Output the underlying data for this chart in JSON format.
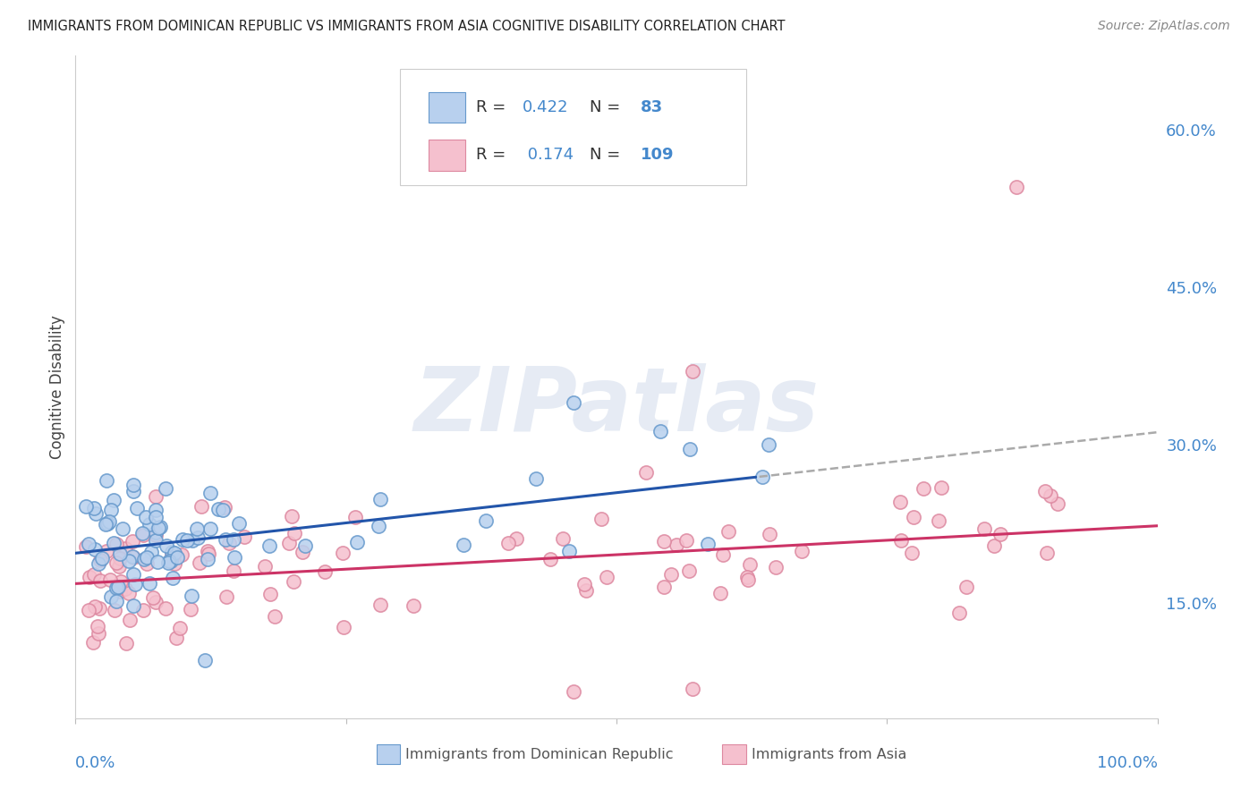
{
  "title": "IMMIGRANTS FROM DOMINICAN REPUBLIC VS IMMIGRANTS FROM ASIA COGNITIVE DISABILITY CORRELATION CHART",
  "source": "Source: ZipAtlas.com",
  "ylabel": "Cognitive Disability",
  "y_ticks": [
    0.15,
    0.3,
    0.45,
    0.6
  ],
  "y_tick_labels": [
    "15.0%",
    "30.0%",
    "45.0%",
    "60.0%"
  ],
  "xlim": [
    0.0,
    1.0
  ],
  "ylim": [
    0.04,
    0.67
  ],
  "blue_R": "0.422",
  "blue_N": "83",
  "pink_R": "0.174",
  "pink_N": "109",
  "blue_fill": "#B8D0EE",
  "blue_edge": "#6699CC",
  "pink_fill": "#F5C0CE",
  "pink_edge": "#DD88A0",
  "blue_line_color": "#2255AA",
  "pink_line_color": "#CC3366",
  "dash_line_color": "#AAAAAA",
  "legend_label_blue": "Immigrants from Dominican Republic",
  "legend_label_pink": "Immigrants from Asia",
  "watermark": "ZIPatlas",
  "background_color": "#FFFFFF",
  "grid_color": "#CCCCCC",
  "title_color": "#222222",
  "axis_tick_color": "#4488CC",
  "legend_text_color": "#4488CC",
  "legend_R_color": "#4488CC",
  "legend_N_color": "#4488CC",
  "blue_line_intercept": 0.197,
  "blue_line_slope": 0.115,
  "pink_line_intercept": 0.168,
  "pink_line_slope": 0.055
}
